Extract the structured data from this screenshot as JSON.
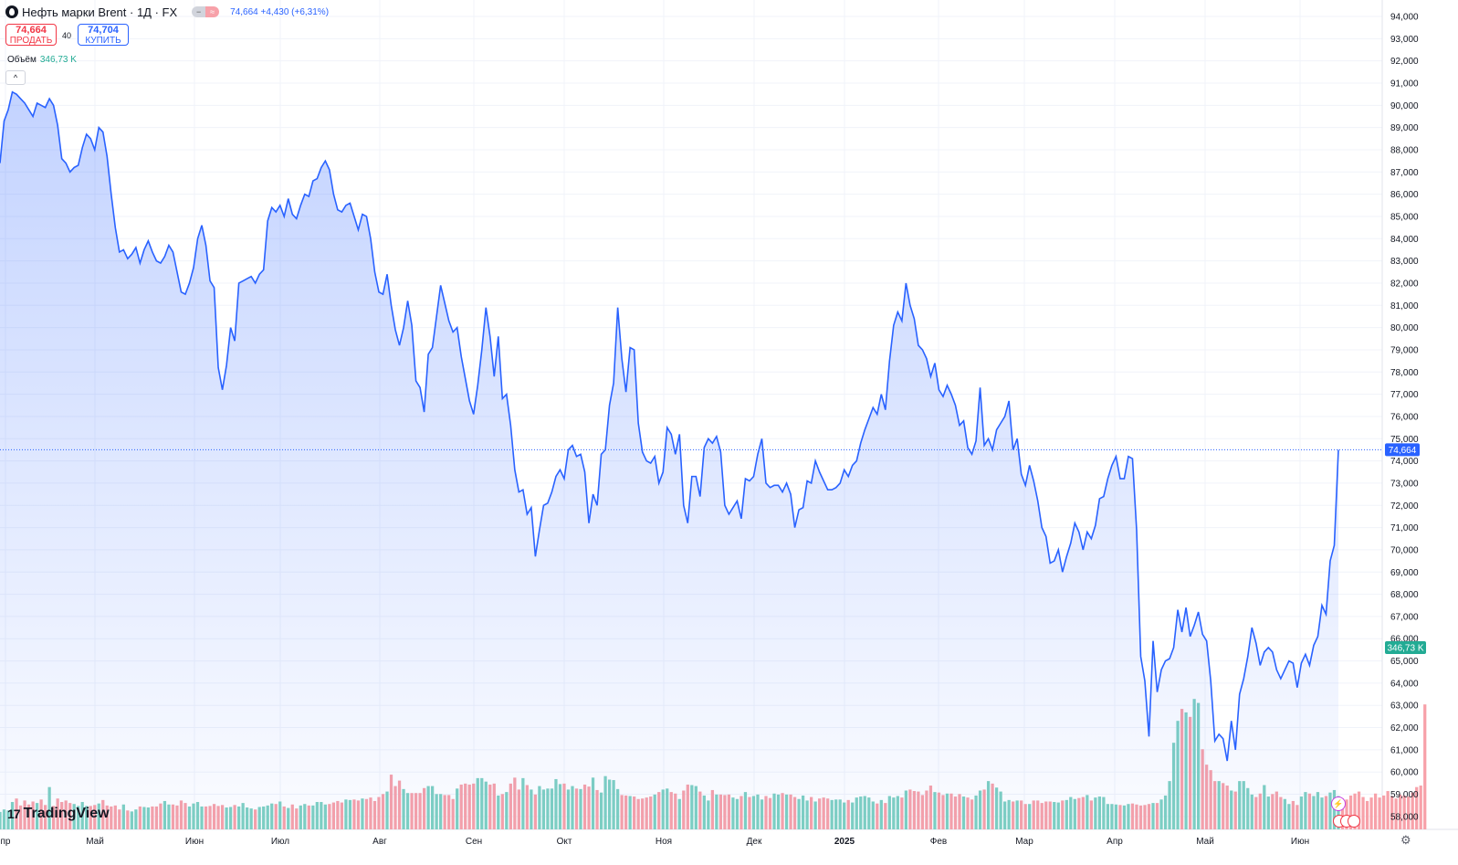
{
  "header": {
    "symbol": "Нефть марки Brent · 1Д · FX",
    "change": "74,664  +4,430 (+6,31%)",
    "sell_price": "74,664",
    "sell_label": "ПРОДАТЬ",
    "spread": "40",
    "buy_price": "74,704",
    "buy_label": "КУПИТЬ",
    "volume_label": "Объём",
    "volume_value": "346,73 K",
    "brand": "TradingView"
  },
  "icons": {
    "gear": "gear-icon",
    "logo": "tradingview-logo-icon",
    "collapse": "chevron-up-icon",
    "flash": "lightning-icon"
  },
  "colors": {
    "line": "#2962ff",
    "up_volume": "#7ed0c2",
    "down_volume": "#f7a1a9",
    "last_price_bg": "#2962ff",
    "volume_badge_bg": "#22ab94"
  },
  "chart_data": {
    "type": "area",
    "series": [
      {
        "name": "",
        "values": [
          87.4,
          89.3,
          89.8,
          90.6,
          90.5,
          90.3,
          90.1,
          89.8,
          89.5,
          90.1,
          90.0,
          89.9,
          90.3,
          90.0,
          89.1,
          87.6,
          87.4,
          87.0,
          87.2,
          87.3,
          88.1,
          88.7,
          88.5,
          88.0,
          89.0,
          88.8,
          87.7,
          86.0,
          84.5,
          83.4,
          83.5,
          83.1,
          83.3,
          83.6,
          82.9,
          83.5,
          83.9,
          83.4,
          83.0,
          82.9,
          83.2,
          83.7,
          83.4,
          82.5,
          81.6,
          81.5,
          82.0,
          82.7,
          84.0,
          84.6,
          83.7,
          82.1,
          81.8,
          78.2,
          77.2,
          78.3,
          80.0,
          79.4,
          82.0,
          82.1,
          82.2,
          82.3,
          82.0,
          82.4,
          82.6,
          84.8,
          85.4,
          85.2,
          85.5,
          85.0,
          85.8,
          85.1,
          84.9,
          85.5,
          86.0,
          85.9,
          86.6,
          86.7,
          87.2,
          87.5,
          87.1,
          86.0,
          85.3,
          85.2,
          85.5,
          85.6,
          85.0,
          84.4,
          85.1,
          85.0,
          84.0,
          82.5,
          81.6,
          81.5,
          82.4,
          81.0,
          79.9,
          79.2,
          80.0,
          81.2,
          80.1,
          77.6,
          77.3,
          76.2,
          78.8,
          79.1,
          80.5,
          81.9,
          81.1,
          80.3,
          79.8,
          80.0,
          78.7,
          77.7,
          76.7,
          76.1,
          77.4,
          79.0,
          80.9,
          79.6,
          77.8,
          79.6,
          76.8,
          77.0,
          75.6,
          73.6,
          72.6,
          72.7,
          71.6,
          71.9,
          69.7,
          70.9,
          72.0,
          72.1,
          72.6,
          73.3,
          73.6,
          73.2,
          74.5,
          74.7,
          74.2,
          74.3,
          73.5,
          71.2,
          72.5,
          72.0,
          74.3,
          74.5,
          76.5,
          77.5,
          80.9,
          78.6,
          77.1,
          79.1,
          79.0,
          75.7,
          74.4,
          74.0,
          73.9,
          74.2,
          73.0,
          73.5,
          75.5,
          75.2,
          74.3,
          75.2,
          72.0,
          71.2,
          73.3,
          73.3,
          72.4,
          74.6,
          75.0,
          74.8,
          75.1,
          74.4,
          72.0,
          71.6,
          71.9,
          72.2,
          71.4,
          73.2,
          73.1,
          73.3,
          74.3,
          75.0,
          73.0,
          72.8,
          72.9,
          72.9,
          72.6,
          73.0,
          72.5,
          71.0,
          71.8,
          71.9,
          73.1,
          73.0,
          74.0,
          73.5,
          73.1,
          72.7,
          72.7,
          72.8,
          73.0,
          73.6,
          73.3,
          73.8,
          74.0,
          74.8,
          75.4,
          75.9,
          76.4,
          76.1,
          77.0,
          76.3,
          78.5,
          80.1,
          80.7,
          80.3,
          82.0,
          81.0,
          80.4,
          79.2,
          79.0,
          78.6,
          77.8,
          78.4,
          77.2,
          76.9,
          77.4,
          77.0,
          76.5,
          75.6,
          75.8,
          74.6,
          74.3,
          74.9,
          77.3,
          74.7,
          75.0,
          74.5,
          75.4,
          75.7,
          76.0,
          76.7,
          74.5,
          75.0,
          73.4,
          72.9,
          73.8,
          73.1,
          72.2,
          71.0,
          70.6,
          69.4,
          69.5,
          70.0,
          69.0,
          69.7,
          70.3,
          71.2,
          70.8,
          70.0,
          70.8,
          70.5,
          71.1,
          72.3,
          72.4,
          73.2,
          73.8,
          74.2,
          73.2,
          73.2,
          74.2,
          74.1,
          70.9,
          65.2,
          64.1,
          61.6,
          65.9,
          63.6,
          64.6,
          65.0,
          65.1,
          65.6,
          67.3,
          66.3,
          67.4,
          66.1,
          66.6,
          67.2,
          66.2,
          65.9,
          64.1,
          61.4,
          61.7,
          61.5,
          60.5,
          62.3,
          61.0,
          63.5,
          64.2,
          65.2,
          66.5,
          65.8,
          64.8,
          65.4,
          65.6,
          65.4,
          64.6,
          64.2,
          64.6,
          65.0,
          64.9,
          63.8,
          64.9,
          65.3,
          64.8,
          65.7,
          66.1,
          67.5,
          67.1,
          69.5,
          70.2,
          74.5
        ]
      }
    ],
    "volume": [
      35,
      40,
      38,
      55,
      62,
      48,
      58,
      50,
      56,
      53,
      60,
      49,
      85,
      47,
      62,
      55,
      58,
      53,
      51,
      47,
      55,
      47,
      47,
      49,
      52,
      59,
      48,
      46,
      48,
      40,
      50,
      38,
      36,
      40,
      46,
      45,
      44,
      46,
      46,
      52,
      57,
      50,
      50,
      48,
      58,
      53,
      46,
      52,
      55,
      46,
      46,
      47,
      51,
      47,
      49,
      44,
      45,
      49,
      46,
      53,
      44,
      42,
      40,
      45,
      46,
      48,
      52,
      51,
      56,
      46,
      43,
      50,
      42,
      48,
      51,
      48,
      48,
      55,
      55,
      50,
      51,
      54,
      57,
      54,
      60,
      59,
      60,
      58,
      62,
      61,
      64,
      57,
      65,
      71,
      76,
      110,
      87,
      98,
      81,
      73,
      73,
      73,
      73,
      83,
      87,
      87,
      71,
      71,
      69,
      69,
      61,
      82,
      90,
      92,
      90,
      92,
      103,
      103,
      96,
      90,
      92,
      68,
      71,
      75,
      92,
      104,
      80,
      103,
      89,
      80,
      70,
      87,
      80,
      82,
      82,
      101,
      91,
      92,
      80,
      87,
      82,
      81,
      90,
      86,
      104,
      79,
      74,
      107,
      100,
      99,
      81,
      69,
      68,
      67,
      66,
      61,
      62,
      64,
      66,
      70,
      75,
      80,
      82,
      75,
      72,
      61,
      78,
      90,
      89,
      87,
      76,
      68,
      58,
      79,
      70,
      70,
      69,
      70,
      64,
      61,
      67,
      75,
      65,
      67,
      70,
      60,
      67,
      63,
      72,
      70,
      73,
      70,
      70,
      65,
      61,
      68,
      58,
      65,
      56,
      62,
      64,
      62,
      59,
      60,
      60,
      54,
      59,
      54,
      64,
      66,
      67,
      64,
      56,
      52,
      59,
      53,
      67,
      64,
      67,
      64,
      78,
      80,
      77,
      76,
      69,
      78,
      88,
      75,
      74,
      69,
      72,
      72,
      66,
      71,
      66,
      64,
      60,
      68,
      78,
      80,
      97,
      92,
      84,
      76,
      56,
      59,
      56,
      58,
      58,
      51,
      51,
      58,
      58,
      53,
      56,
      56,
      55,
      54,
      58,
      59,
      65,
      61,
      63,
      65,
      69,
      58,
      64,
      66,
      65,
      51,
      51,
      50,
      49,
      48,
      51,
      52,
      50,
      48,
      49,
      51,
      53,
      53,
      60,
      68,
      97,
      174,
      218,
      242,
      235,
      226,
      262,
      254,
      161,
      130,
      119,
      97,
      97,
      93,
      88,
      78,
      76,
      97,
      97,
      83,
      70,
      65,
      72,
      89,
      66,
      71,
      76,
      65,
      61,
      51,
      57,
      49,
      66,
      75,
      72,
      67,
      75,
      64,
      67,
      74,
      79,
      67,
      62,
      60,
      68,
      72,
      76,
      65,
      57,
      64,
      72,
      64,
      68,
      77,
      67,
      62,
      70,
      68,
      66,
      74,
      85,
      88,
      251
    ]
  },
  "axis": {
    "y_ticks": [
      "94,000",
      "93,000",
      "92,000",
      "91,000",
      "90,000",
      "89,000",
      "88,000",
      "87,000",
      "86,000",
      "85,000",
      "84,000",
      "83,000",
      "82,000",
      "81,000",
      "80,000",
      "79,000",
      "78,000",
      "77,000",
      "76,000",
      "75,000",
      "74,000",
      "73,000",
      "72,000",
      "71,000",
      "70,000",
      "69,000",
      "68,000",
      "67,000",
      "66,000",
      "65,000",
      "64,000",
      "63,000",
      "62,000",
      "61,000",
      "60,000",
      "59,000",
      "58,000"
    ],
    "x_ticks": [
      "пр",
      "Май",
      "Июн",
      "Июл",
      "Авг",
      "Сен",
      "Окт",
      "Ноя",
      "Дек",
      "2025",
      "Фев",
      "Мар",
      "Апр",
      "Май",
      "Июн"
    ],
    "last_price_label": "74,664",
    "volume_badge_label": "346,73 K"
  }
}
